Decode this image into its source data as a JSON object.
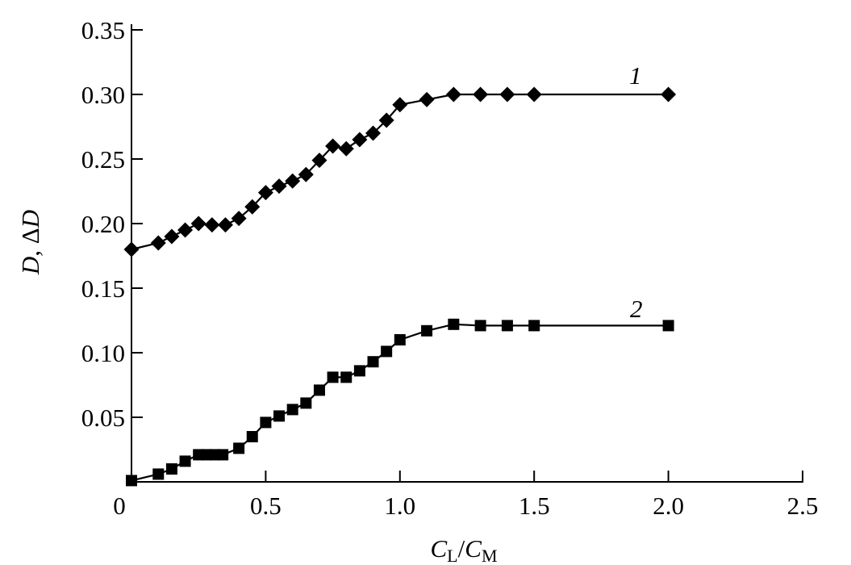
{
  "chart_data": {
    "type": "line",
    "title": "",
    "xlabel": {
      "c1": "C",
      "s1": "L",
      "sep": "/",
      "c2": "C",
      "s2": "M"
    },
    "ylabel": {
      "d1": "D",
      "sep": ", Δ",
      "d2": "D"
    },
    "xlim": [
      0,
      2.5
    ],
    "ylim": [
      0,
      0.35
    ],
    "xticks": [
      "0",
      "0.5",
      "1.0",
      "1.5",
      "2.0",
      "2.5"
    ],
    "yticks": [
      "0.05",
      "0.10",
      "0.15",
      "0.20",
      "0.25",
      "0.30",
      "0.35"
    ],
    "grid": false,
    "series": [
      {
        "name": "1",
        "marker": "diamond",
        "color": "#000000",
        "x": [
          0,
          0.1,
          0.15,
          0.2,
          0.25,
          0.3,
          0.35,
          0.4,
          0.45,
          0.5,
          0.55,
          0.6,
          0.65,
          0.7,
          0.75,
          0.8,
          0.85,
          0.9,
          0.95,
          1.0,
          1.1,
          1.2,
          1.3,
          1.4,
          1.5,
          2.0
        ],
        "y": [
          0.18,
          0.185,
          0.19,
          0.195,
          0.2,
          0.199,
          0.199,
          0.204,
          0.213,
          0.224,
          0.229,
          0.233,
          0.238,
          0.249,
          0.26,
          0.258,
          0.265,
          0.27,
          0.28,
          0.292,
          0.296,
          0.3,
          0.3,
          0.3,
          0.3,
          0.3
        ]
      },
      {
        "name": "2",
        "marker": "square",
        "color": "#000000",
        "x": [
          0,
          0.1,
          0.15,
          0.2,
          0.25,
          0.28,
          0.31,
          0.34,
          0.4,
          0.45,
          0.5,
          0.55,
          0.6,
          0.65,
          0.7,
          0.75,
          0.8,
          0.85,
          0.9,
          0.95,
          1.0,
          1.1,
          1.2,
          1.3,
          1.4,
          1.5,
          2.0
        ],
        "y": [
          0.001,
          0.006,
          0.01,
          0.016,
          0.021,
          0.021,
          0.021,
          0.021,
          0.026,
          0.035,
          0.046,
          0.051,
          0.056,
          0.061,
          0.071,
          0.081,
          0.081,
          0.086,
          0.093,
          0.101,
          0.11,
          0.117,
          0.122,
          0.121,
          0.121,
          0.121,
          0.121
        ]
      }
    ]
  }
}
